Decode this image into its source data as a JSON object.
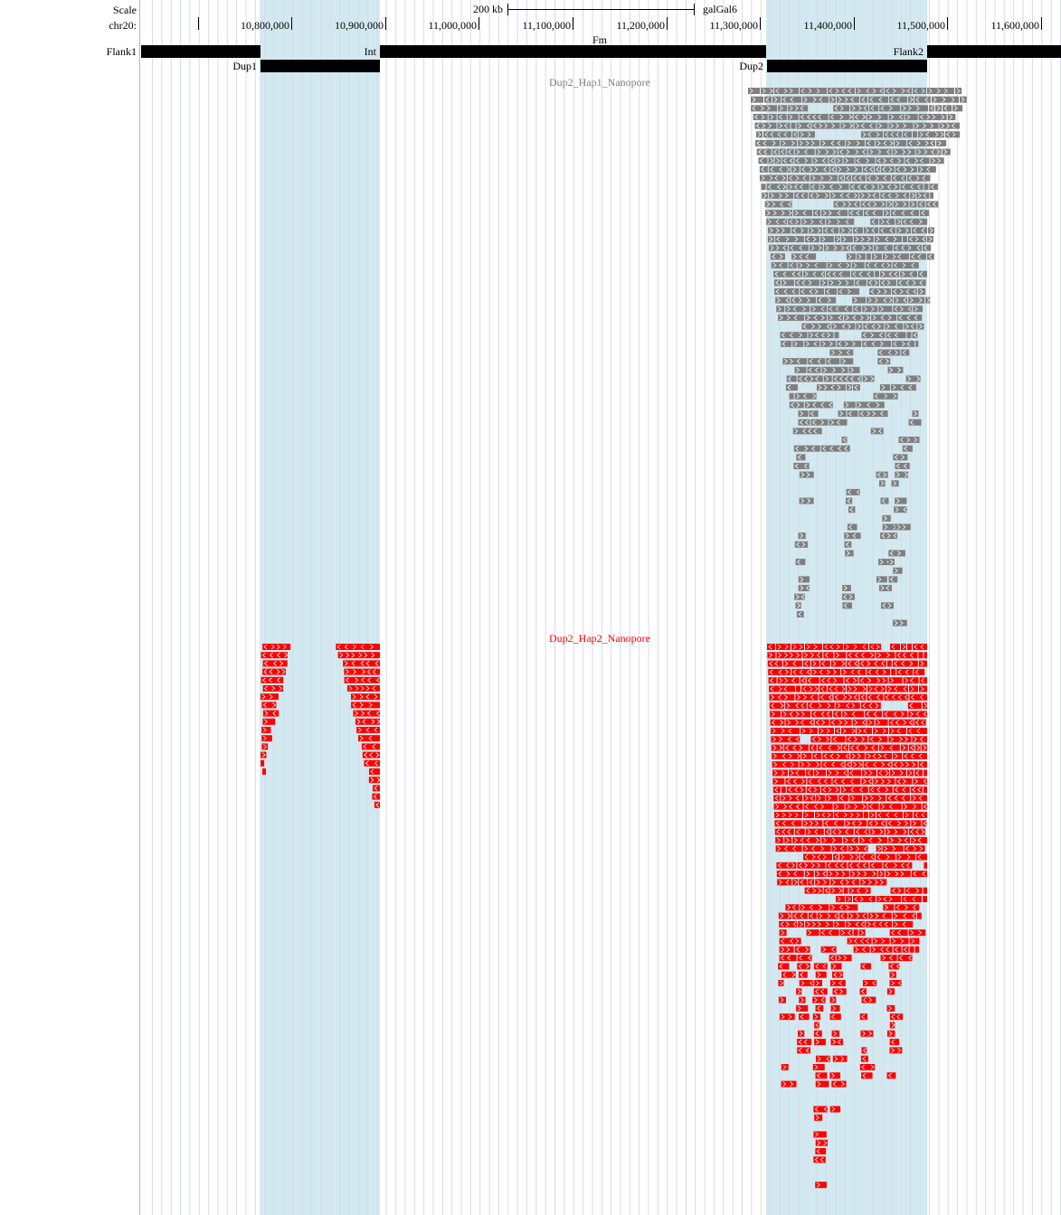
{
  "browser": {
    "scale_label": "Scale",
    "chrom_label": "chr20:",
    "scale_bar_text": "200 kb",
    "assembly": "galGal6"
  },
  "ruler": {
    "ticks": [
      "10,800,000",
      "10,900,000",
      "11,000,000",
      "11,100,000",
      "11,200,000",
      "11,300,000",
      "11,400,000",
      "11,500,000",
      "11,600,000"
    ]
  },
  "annotation_track": {
    "track_label": "Fm",
    "features": [
      {
        "name": "Flank1"
      },
      {
        "name": "Int"
      },
      {
        "name": "Flank2"
      },
      {
        "name": "Dup1"
      },
      {
        "name": "Dup2"
      }
    ]
  },
  "read_tracks": [
    {
      "name": "Dup2_Hap1_Nanopore",
      "color": "#7f7f7f"
    },
    {
      "name": "Dup2_Hap2_Nanopore",
      "color": "#ff0000"
    }
  ],
  "colors": {
    "highlight": "#d2e9f0",
    "gridline": "#d9d9ee",
    "left_border": "#e8a0a0",
    "feature_block": "#000000"
  }
}
